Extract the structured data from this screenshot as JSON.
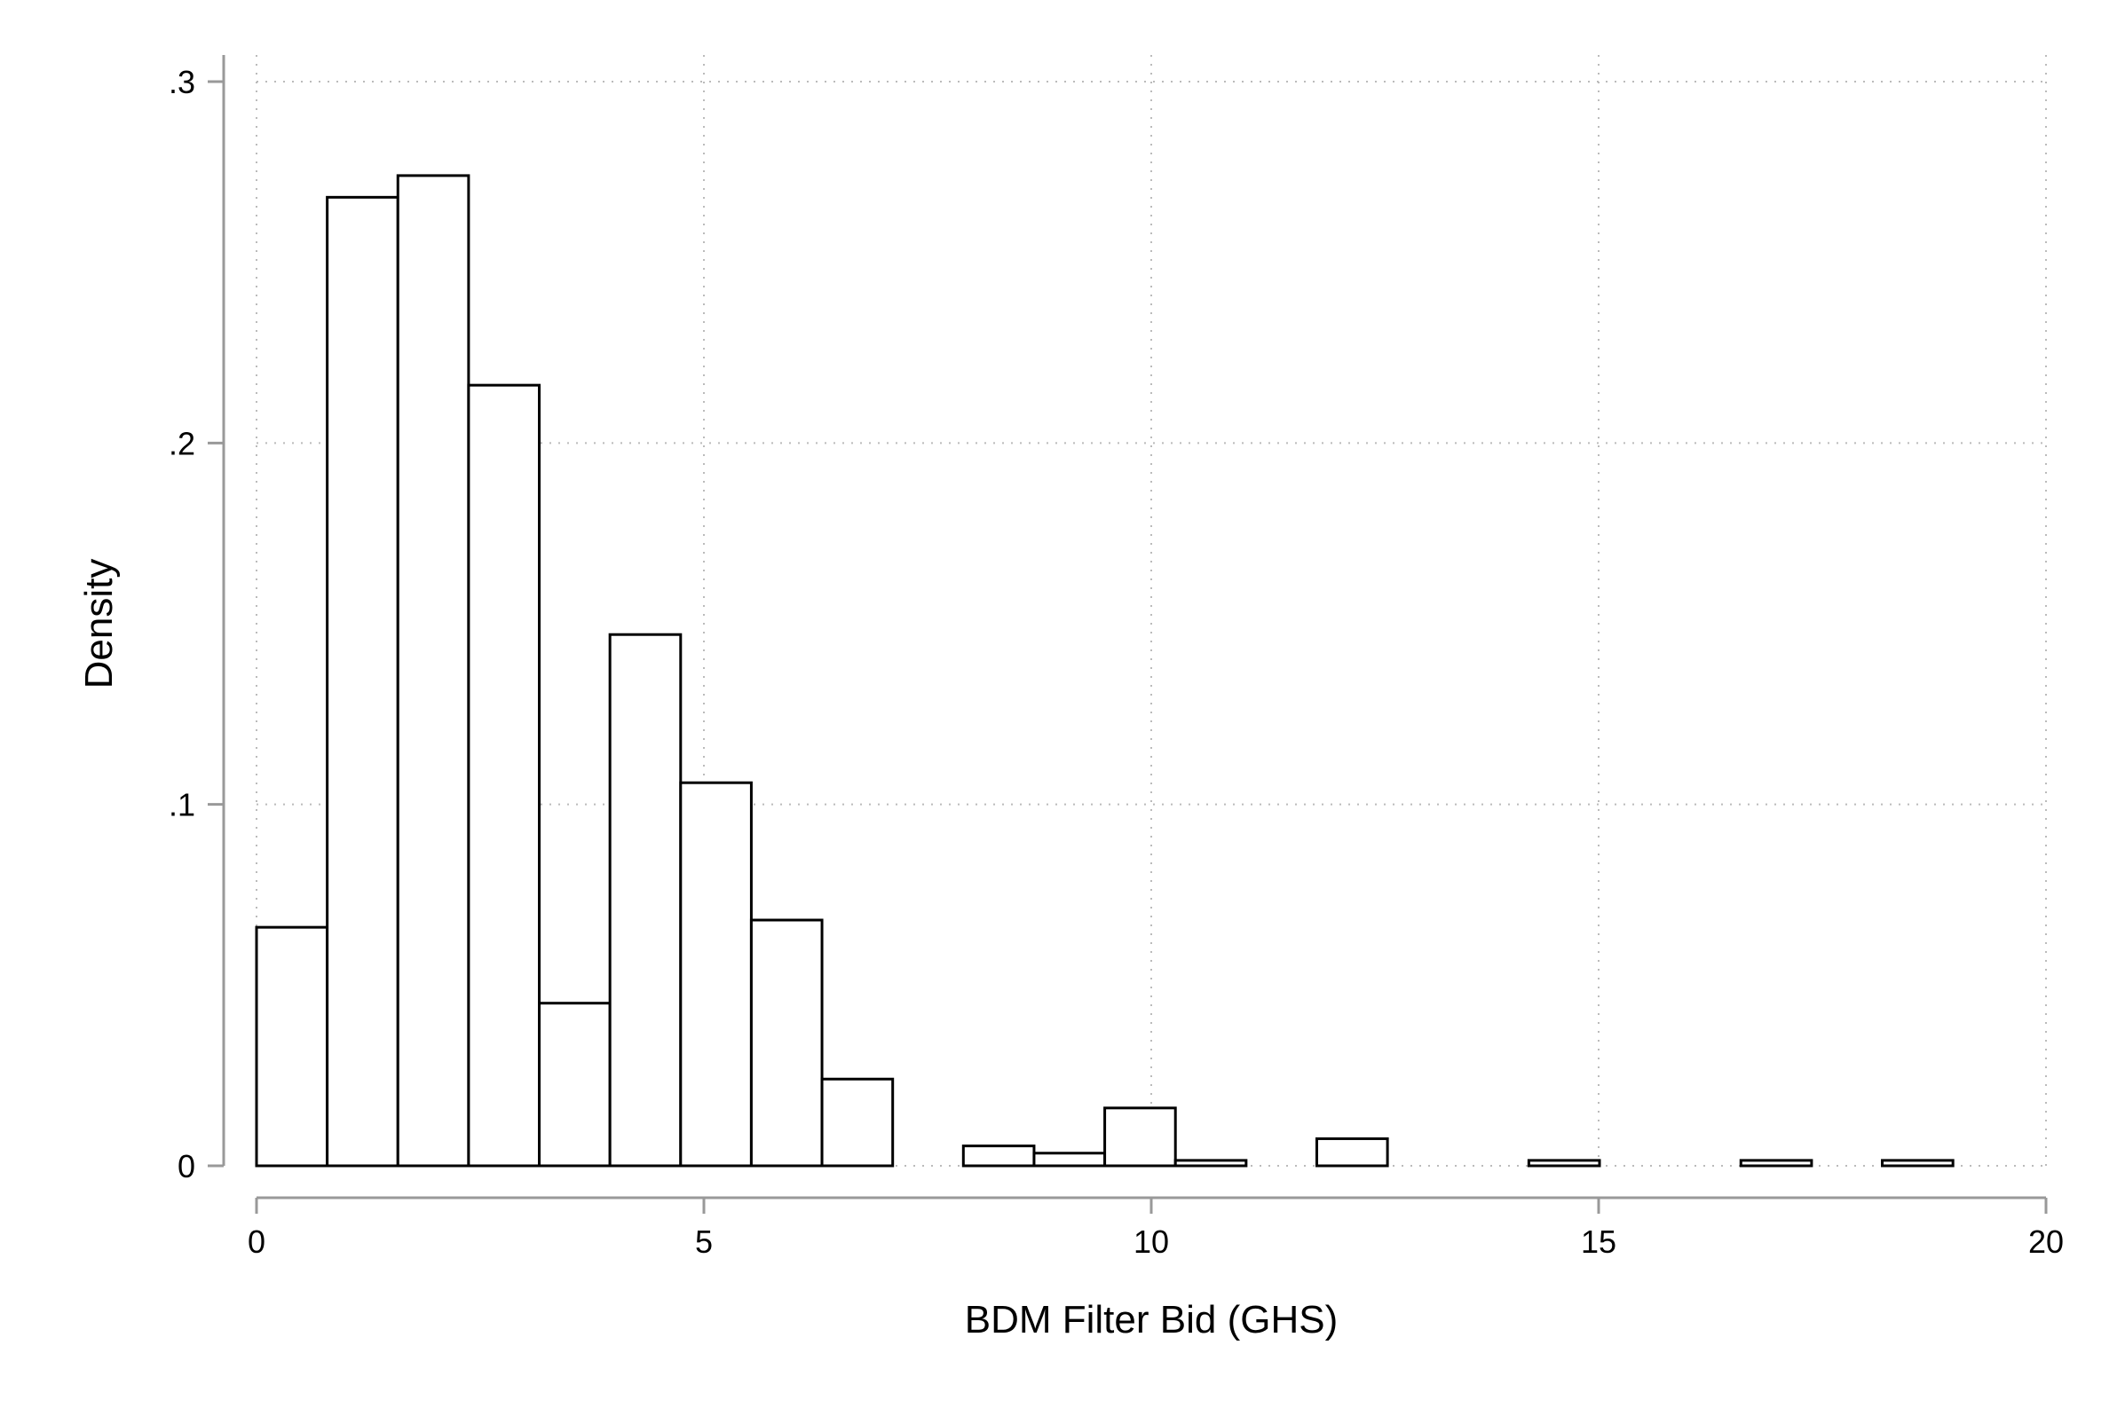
{
  "chart_data": {
    "type": "histogram",
    "title": "",
    "xlabel": "BDM Filter Bid (GHS)",
    "ylabel": "Density",
    "xlim": [
      0,
      20
    ],
    "ylim": [
      0,
      0.3
    ],
    "x_ticks": [
      {
        "value": 0,
        "label": "0"
      },
      {
        "value": 5,
        "label": "5"
      },
      {
        "value": 10,
        "label": "10"
      },
      {
        "value": 15,
        "label": "15"
      },
      {
        "value": 20,
        "label": "20"
      }
    ],
    "y_ticks": [
      {
        "value": 0,
        "label": "0"
      },
      {
        "value": 0.1,
        "label": ".1"
      },
      {
        "value": 0.2,
        "label": ".2"
      },
      {
        "value": 0.3,
        "label": ".3"
      }
    ],
    "grid": true,
    "bins": [
      {
        "x0": 0.0,
        "x1": 0.79,
        "density": 0.066
      },
      {
        "x0": 0.79,
        "x1": 1.58,
        "density": 0.268
      },
      {
        "x0": 1.58,
        "x1": 2.37,
        "density": 0.274
      },
      {
        "x0": 2.37,
        "x1": 3.16,
        "density": 0.216
      },
      {
        "x0": 3.16,
        "x1": 3.95,
        "density": 0.045
      },
      {
        "x0": 3.95,
        "x1": 4.74,
        "density": 0.147
      },
      {
        "x0": 4.74,
        "x1": 5.53,
        "density": 0.106
      },
      {
        "x0": 5.53,
        "x1": 6.32,
        "density": 0.068
      },
      {
        "x0": 6.32,
        "x1": 7.11,
        "density": 0.024
      },
      {
        "x0": 7.9,
        "x1": 8.69,
        "density": 0.0055
      },
      {
        "x0": 8.69,
        "x1": 9.48,
        "density": 0.0035
      },
      {
        "x0": 9.48,
        "x1": 10.27,
        "density": 0.016
      },
      {
        "x0": 10.27,
        "x1": 11.06,
        "density": 0.0015
      },
      {
        "x0": 11.85,
        "x1": 12.64,
        "density": 0.0075
      },
      {
        "x0": 14.22,
        "x1": 15.01,
        "density": 0.0015
      },
      {
        "x0": 16.59,
        "x1": 17.38,
        "density": 0.0015
      },
      {
        "x0": 18.17,
        "x1": 18.96,
        "density": 0.0015
      }
    ],
    "colors": {
      "bar_fill": "#ffffff",
      "bar_stroke": "#000000",
      "axis": "#999999",
      "grid": "#bbbbbb"
    }
  }
}
